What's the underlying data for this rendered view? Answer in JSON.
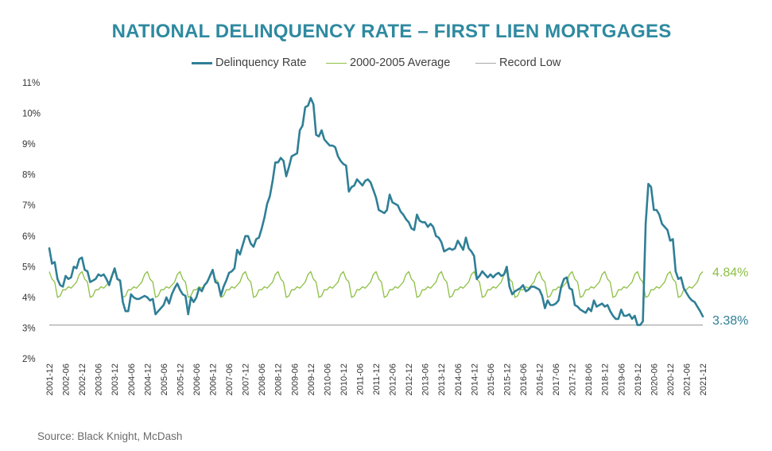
{
  "title": "NATIONAL DELINQUENCY RATE – FIRST LIEN MORTGAGES",
  "source": "Source: Black Knight, McDash",
  "legend": [
    {
      "label": "Delinquency Rate",
      "color": "#2f7f96"
    },
    {
      "label": "2000-2005 Average",
      "color": "#8dc045"
    },
    {
      "label": "Record Low",
      "color": "#a8a8a8"
    }
  ],
  "colors": {
    "title": "#2e8aa0",
    "delinquency": "#2f7f96",
    "average": "#8dc045",
    "record_low": "#a8a8a8"
  },
  "chart_data": {
    "type": "line",
    "title": "NATIONAL DELINQUENCY RATE – FIRST LIEN MORTGAGES",
    "xlabel": "",
    "ylabel": "",
    "y_unit": "%",
    "ylim": [
      2,
      11
    ],
    "yticks": [
      "2%",
      "3%",
      "4%",
      "5%",
      "6%",
      "7%",
      "8%",
      "9%",
      "10%",
      "11%"
    ],
    "xlim": [
      "2001-12",
      "2021-12"
    ],
    "xticks": [
      "2001-12",
      "2002-06",
      "2002-12",
      "2003-06",
      "2003-12",
      "2004-06",
      "2004-12",
      "2005-06",
      "2005-12",
      "2006-06",
      "2006-12",
      "2007-06",
      "2007-12",
      "2008-06",
      "2008-12",
      "2009-06",
      "2009-12",
      "2010-06",
      "2010-12",
      "2011-06",
      "2011-12",
      "2012-06",
      "2012-12",
      "2013-06",
      "2013-12",
      "2014-06",
      "2014-12",
      "2015-06",
      "2015-12",
      "2016-06",
      "2016-12",
      "2017-06",
      "2017-12",
      "2018-06",
      "2018-12",
      "2019-06",
      "2019-12",
      "2020-06",
      "2020-12",
      "2021-06",
      "2021-12"
    ],
    "grid": false,
    "legend_position": "top",
    "series": [
      {
        "name": "Delinquency Rate",
        "color": "#2f7f96",
        "end_label": "3.38%",
        "points": [
          [
            "2001-12",
            5.6
          ],
          [
            "2002-01",
            5.1
          ],
          [
            "2002-02",
            5.15
          ],
          [
            "2002-03",
            4.6
          ],
          [
            "2002-04",
            4.4
          ],
          [
            "2002-05",
            4.35
          ],
          [
            "2002-06",
            4.7
          ],
          [
            "2002-07",
            4.6
          ],
          [
            "2002-08",
            4.65
          ],
          [
            "2002-09",
            5.0
          ],
          [
            "2002-10",
            4.95
          ],
          [
            "2002-11",
            5.25
          ],
          [
            "2002-12",
            5.3
          ],
          [
            "2003-01",
            4.9
          ],
          [
            "2003-02",
            4.85
          ],
          [
            "2003-03",
            4.5
          ],
          [
            "2003-04",
            4.55
          ],
          [
            "2003-05",
            4.6
          ],
          [
            "2003-06",
            4.75
          ],
          [
            "2003-07",
            4.7
          ],
          [
            "2003-08",
            4.75
          ],
          [
            "2003-09",
            4.6
          ],
          [
            "2003-10",
            4.4
          ],
          [
            "2003-11",
            4.7
          ],
          [
            "2003-12",
            4.95
          ],
          [
            "2004-01",
            4.6
          ],
          [
            "2004-02",
            4.55
          ],
          [
            "2004-03",
            3.85
          ],
          [
            "2004-04",
            3.55
          ],
          [
            "2004-05",
            3.55
          ],
          [
            "2004-06",
            4.1
          ],
          [
            "2004-07",
            4.0
          ],
          [
            "2004-08",
            3.95
          ],
          [
            "2004-09",
            3.95
          ],
          [
            "2004-10",
            4.0
          ],
          [
            "2004-11",
            4.05
          ],
          [
            "2004-12",
            4.0
          ],
          [
            "2005-01",
            3.9
          ],
          [
            "2005-02",
            3.95
          ],
          [
            "2005-03",
            3.45
          ],
          [
            "2005-04",
            3.55
          ],
          [
            "2005-05",
            3.65
          ],
          [
            "2005-06",
            3.75
          ],
          [
            "2005-07",
            4.0
          ],
          [
            "2005-08",
            3.8
          ],
          [
            "2005-09",
            4.1
          ],
          [
            "2005-10",
            4.3
          ],
          [
            "2005-11",
            4.45
          ],
          [
            "2005-12",
            4.25
          ],
          [
            "2006-01",
            4.1
          ],
          [
            "2006-02",
            4.05
          ],
          [
            "2006-03",
            3.45
          ],
          [
            "2006-04",
            4.0
          ],
          [
            "2006-05",
            3.85
          ],
          [
            "2006-06",
            4.0
          ],
          [
            "2006-07",
            4.3
          ],
          [
            "2006-08",
            4.2
          ],
          [
            "2006-09",
            4.4
          ],
          [
            "2006-10",
            4.5
          ],
          [
            "2006-11",
            4.7
          ],
          [
            "2006-12",
            4.9
          ],
          [
            "2007-01",
            4.5
          ],
          [
            "2007-02",
            4.45
          ],
          [
            "2007-03",
            4.05
          ],
          [
            "2007-04",
            4.35
          ],
          [
            "2007-05",
            4.55
          ],
          [
            "2007-06",
            4.8
          ],
          [
            "2007-07",
            4.85
          ],
          [
            "2007-08",
            4.95
          ],
          [
            "2007-09",
            5.55
          ],
          [
            "2007-10",
            5.4
          ],
          [
            "2007-11",
            5.7
          ],
          [
            "2007-12",
            6.0
          ],
          [
            "2008-01",
            6.0
          ],
          [
            "2008-02",
            5.75
          ],
          [
            "2008-03",
            5.65
          ],
          [
            "2008-04",
            5.9
          ],
          [
            "2008-05",
            5.95
          ],
          [
            "2008-06",
            6.25
          ],
          [
            "2008-07",
            6.6
          ],
          [
            "2008-08",
            7.05
          ],
          [
            "2008-09",
            7.3
          ],
          [
            "2008-10",
            7.8
          ],
          [
            "2008-11",
            8.4
          ],
          [
            "2008-12",
            8.4
          ],
          [
            "2009-01",
            8.55
          ],
          [
            "2009-02",
            8.45
          ],
          [
            "2009-03",
            7.95
          ],
          [
            "2009-04",
            8.25
          ],
          [
            "2009-05",
            8.6
          ],
          [
            "2009-06",
            8.65
          ],
          [
            "2009-07",
            8.7
          ],
          [
            "2009-08",
            9.45
          ],
          [
            "2009-09",
            9.6
          ],
          [
            "2009-10",
            10.2
          ],
          [
            "2009-11",
            10.25
          ],
          [
            "2009-12",
            10.5
          ],
          [
            "2010-01",
            10.3
          ],
          [
            "2010-02",
            9.3
          ],
          [
            "2010-03",
            9.25
          ],
          [
            "2010-04",
            9.45
          ],
          [
            "2010-05",
            9.15
          ],
          [
            "2010-06",
            9.05
          ],
          [
            "2010-07",
            8.95
          ],
          [
            "2010-08",
            8.95
          ],
          [
            "2010-09",
            8.9
          ],
          [
            "2010-10",
            8.6
          ],
          [
            "2010-11",
            8.45
          ],
          [
            "2010-12",
            8.35
          ],
          [
            "2011-01",
            8.3
          ],
          [
            "2011-02",
            7.45
          ],
          [
            "2011-03",
            7.6
          ],
          [
            "2011-04",
            7.65
          ],
          [
            "2011-05",
            7.85
          ],
          [
            "2011-06",
            7.75
          ],
          [
            "2011-07",
            7.65
          ],
          [
            "2011-08",
            7.8
          ],
          [
            "2011-09",
            7.85
          ],
          [
            "2011-10",
            7.75
          ],
          [
            "2011-11",
            7.5
          ],
          [
            "2011-12",
            7.25
          ],
          [
            "2012-01",
            6.85
          ],
          [
            "2012-02",
            6.8
          ],
          [
            "2012-03",
            6.75
          ],
          [
            "2012-04",
            6.85
          ],
          [
            "2012-05",
            7.35
          ],
          [
            "2012-06",
            7.1
          ],
          [
            "2012-07",
            7.05
          ],
          [
            "2012-08",
            7.0
          ],
          [
            "2012-09",
            6.8
          ],
          [
            "2012-10",
            6.7
          ],
          [
            "2012-11",
            6.55
          ],
          [
            "2012-12",
            6.45
          ],
          [
            "2013-01",
            6.25
          ],
          [
            "2013-02",
            6.2
          ],
          [
            "2013-03",
            6.7
          ],
          [
            "2013-04",
            6.5
          ],
          [
            "2013-05",
            6.45
          ],
          [
            "2013-06",
            6.45
          ],
          [
            "2013-07",
            6.3
          ],
          [
            "2013-08",
            6.4
          ],
          [
            "2013-09",
            6.3
          ],
          [
            "2013-10",
            6.0
          ],
          [
            "2013-11",
            5.95
          ],
          [
            "2013-12",
            5.8
          ],
          [
            "2014-01",
            5.5
          ],
          [
            "2014-02",
            5.55
          ],
          [
            "2014-03",
            5.6
          ],
          [
            "2014-04",
            5.55
          ],
          [
            "2014-05",
            5.6
          ],
          [
            "2014-06",
            5.85
          ],
          [
            "2014-07",
            5.7
          ],
          [
            "2014-08",
            5.55
          ],
          [
            "2014-09",
            5.95
          ],
          [
            "2014-10",
            5.6
          ],
          [
            "2014-11",
            5.5
          ],
          [
            "2014-12",
            5.35
          ],
          [
            "2015-01",
            4.6
          ],
          [
            "2015-02",
            4.7
          ],
          [
            "2015-03",
            4.85
          ],
          [
            "2015-04",
            4.75
          ],
          [
            "2015-05",
            4.65
          ],
          [
            "2015-06",
            4.75
          ],
          [
            "2015-07",
            4.65
          ],
          [
            "2015-08",
            4.75
          ],
          [
            "2015-09",
            4.8
          ],
          [
            "2015-10",
            4.7
          ],
          [
            "2015-11",
            4.75
          ],
          [
            "2015-12",
            5.0
          ],
          [
            "2016-01",
            4.35
          ],
          [
            "2016-02",
            4.1
          ],
          [
            "2016-03",
            4.2
          ],
          [
            "2016-04",
            4.25
          ],
          [
            "2016-05",
            4.3
          ],
          [
            "2016-06",
            4.4
          ],
          [
            "2016-07",
            4.2
          ],
          [
            "2016-08",
            4.25
          ],
          [
            "2016-09",
            4.35
          ],
          [
            "2016-10",
            4.35
          ],
          [
            "2016-11",
            4.3
          ],
          [
            "2016-12",
            4.25
          ],
          [
            "2017-01",
            4.05
          ],
          [
            "2017-02",
            3.65
          ],
          [
            "2017-03",
            3.9
          ],
          [
            "2017-04",
            3.75
          ],
          [
            "2017-05",
            3.75
          ],
          [
            "2017-06",
            3.8
          ],
          [
            "2017-07",
            3.9
          ],
          [
            "2017-08",
            4.35
          ],
          [
            "2017-09",
            4.6
          ],
          [
            "2017-10",
            4.65
          ],
          [
            "2017-11",
            4.3
          ],
          [
            "2017-12",
            4.25
          ],
          [
            "2018-01",
            3.75
          ],
          [
            "2018-02",
            3.7
          ],
          [
            "2018-03",
            3.6
          ],
          [
            "2018-04",
            3.55
          ],
          [
            "2018-05",
            3.5
          ],
          [
            "2018-06",
            3.65
          ],
          [
            "2018-07",
            3.55
          ],
          [
            "2018-08",
            3.9
          ],
          [
            "2018-09",
            3.7
          ],
          [
            "2018-10",
            3.75
          ],
          [
            "2018-11",
            3.8
          ],
          [
            "2018-12",
            3.7
          ],
          [
            "2019-01",
            3.75
          ],
          [
            "2019-02",
            3.55
          ],
          [
            "2019-03",
            3.4
          ],
          [
            "2019-04",
            3.3
          ],
          [
            "2019-05",
            3.3
          ],
          [
            "2019-06",
            3.6
          ],
          [
            "2019-07",
            3.4
          ],
          [
            "2019-08",
            3.4
          ],
          [
            "2019-09",
            3.45
          ],
          [
            "2019-10",
            3.3
          ],
          [
            "2019-11",
            3.4
          ],
          [
            "2019-12",
            3.1
          ],
          [
            "2020-01",
            3.1
          ],
          [
            "2020-02",
            3.22
          ],
          [
            "2020-03",
            6.4
          ],
          [
            "2020-04",
            7.7
          ],
          [
            "2020-05",
            7.6
          ],
          [
            "2020-06",
            6.85
          ],
          [
            "2020-07",
            6.85
          ],
          [
            "2020-08",
            6.7
          ],
          [
            "2020-09",
            6.4
          ],
          [
            "2020-10",
            6.3
          ],
          [
            "2020-11",
            6.2
          ],
          [
            "2020-12",
            5.85
          ],
          [
            "2021-01",
            5.9
          ],
          [
            "2021-02",
            4.85
          ],
          [
            "2021-03",
            4.6
          ],
          [
            "2021-04",
            4.65
          ],
          [
            "2021-05",
            4.3
          ],
          [
            "2021-06",
            4.15
          ],
          [
            "2021-07",
            4.0
          ],
          [
            "2021-08",
            3.9
          ],
          [
            "2021-09",
            3.85
          ],
          [
            "2021-10",
            3.7
          ],
          [
            "2021-11",
            3.55
          ],
          [
            "2021-12",
            3.38
          ]
        ]
      },
      {
        "name": "2000-2005 Average",
        "color": "#8dc045",
        "end_label": "4.84%",
        "seasonal_pattern": [
          4.84,
          4.6,
          4.5,
          4.0,
          4.05,
          4.25,
          4.25,
          4.35,
          4.3,
          4.4,
          4.5,
          4.75
        ],
        "pattern_starts": "2001-12",
        "pattern_ends": "2021-12"
      },
      {
        "name": "Record Low",
        "color": "#a8a8a8",
        "value": 3.1
      }
    ]
  }
}
